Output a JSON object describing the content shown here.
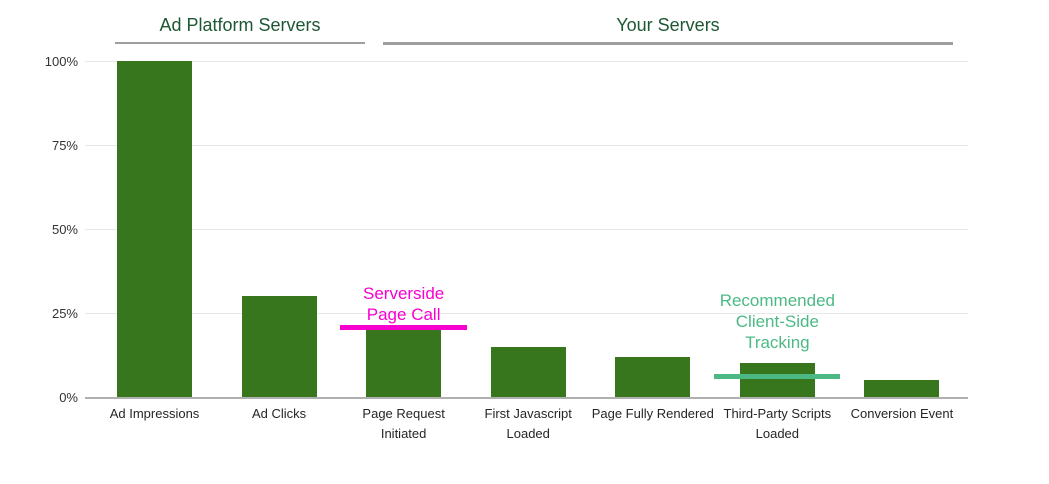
{
  "page": {
    "background": "#ffffff"
  },
  "chart_data": {
    "type": "bar",
    "categories": [
      "Ad Impressions",
      "Ad Clicks",
      "Page Request Initiated",
      "First Javascript Loaded",
      "Page Fully Rendered",
      "Third-Party Scripts Loaded",
      "Conversion Event"
    ],
    "values": [
      100,
      30,
      20,
      15,
      12,
      10,
      5
    ],
    "unit": "%",
    "ylim": [
      0,
      100
    ],
    "yticks": [
      0,
      25,
      50,
      75,
      100
    ],
    "ytick_labels": [
      "0%",
      "25%",
      "50%",
      "75%",
      "100%"
    ],
    "grid": "horizontal",
    "legend": "none",
    "bar_color": "#38761d",
    "group_headers": [
      {
        "label": "Ad Platform Servers",
        "categories_span": [
          0,
          1
        ]
      },
      {
        "label": "Your Servers",
        "categories_span": [
          2,
          6
        ]
      }
    ],
    "annotations": [
      {
        "lines": [
          "Serverside",
          "Page Call"
        ],
        "color": "#f800cf",
        "line_value_pct": 20,
        "anchor_category": "Page Request Initiated",
        "anchor_index": 2
      },
      {
        "lines": [
          "Recommended",
          "Client-Side",
          "Tracking"
        ],
        "color": "#4cb985",
        "line_value_pct": 6,
        "anchor_category": "Third-Party Scripts Loaded",
        "anchor_index": 5
      }
    ]
  },
  "colors": {
    "header_text": "#1d5733",
    "header_underline": "#9e9e9e",
    "gridline": "#e8e8e8",
    "axis_baseline": "#b0b0b0",
    "tick_text": "#333333",
    "category_text": "#262626"
  }
}
